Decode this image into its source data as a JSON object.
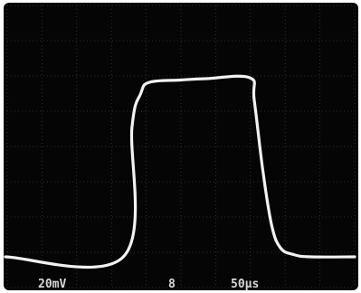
{
  "chart_data": {
    "type": "line",
    "title": "",
    "xlabel": "",
    "ylabel": "",
    "grid": true,
    "grid_divisions": {
      "x": 10,
      "y": 8
    },
    "scale": {
      "vertical": "20mV",
      "horizontal": "50μs",
      "trigger_marker": "8"
    },
    "series": [
      {
        "x": [
          0,
          1.35,
          1.45,
          1.55,
          1.65,
          2.0,
          2.3,
          2.8,
          2.85,
          2.95,
          3.05,
          3.15,
          3.3,
          3.5,
          4.0
        ],
        "values": [
          0.0,
          0.0,
          2.9,
          3.65,
          3.9,
          3.95,
          3.98,
          4.0,
          3.5,
          1.9,
          0.7,
          0.2,
          0.05,
          0.0,
          0.0
        ]
      }
    ]
  },
  "colors": {
    "screen": "#050505",
    "trace": "#f2f2f2",
    "grid": "#3a3a3a",
    "border": "#ffffff"
  }
}
